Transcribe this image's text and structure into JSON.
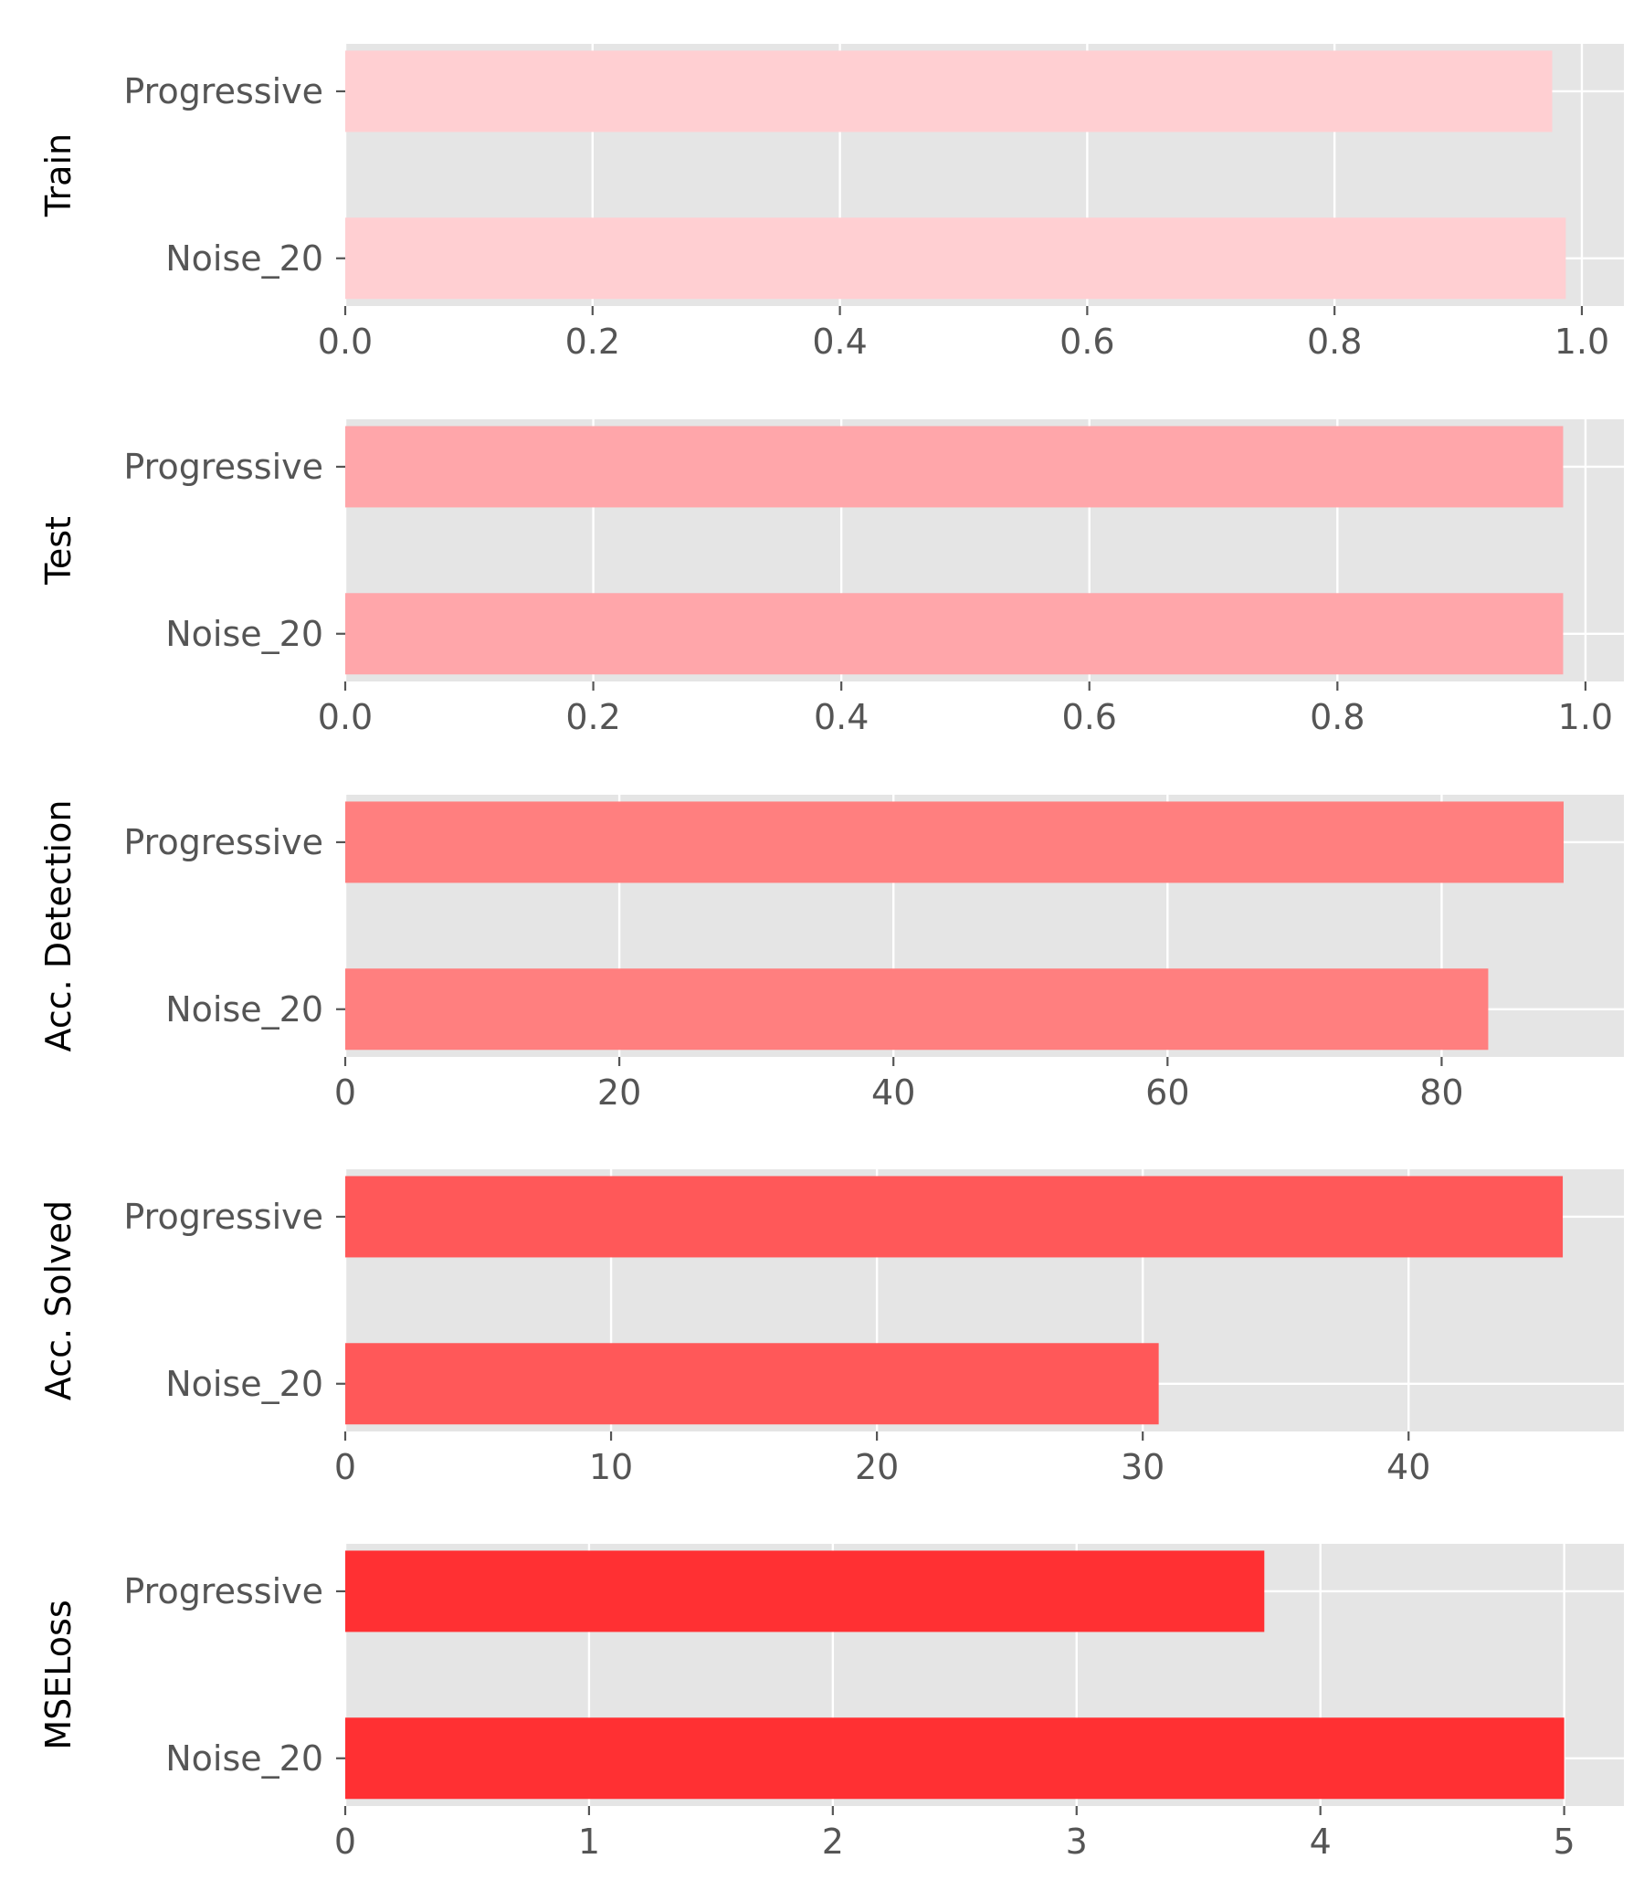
{
  "chart_data": [
    {
      "type": "bar",
      "orientation": "horizontal",
      "ylabel": "Train",
      "categories": [
        "Progressive",
        "Noise_20"
      ],
      "values": [
        0.976,
        0.987
      ],
      "xlim": [
        0,
        1.034
      ],
      "xticks": [
        0.0,
        0.2,
        0.4,
        0.6,
        0.8,
        1.0
      ],
      "xtick_labels": [
        "0.0",
        "0.2",
        "0.4",
        "0.6",
        "0.8",
        "1.0"
      ],
      "color": "#ffcfd2",
      "grid": true
    },
    {
      "type": "bar",
      "orientation": "horizontal",
      "ylabel": "Test",
      "categories": [
        "Progressive",
        "Noise_20"
      ],
      "values": [
        0.982,
        0.982
      ],
      "xlim": [
        0,
        1.031
      ],
      "xticks": [
        0.0,
        0.2,
        0.4,
        0.6,
        0.8,
        1.0
      ],
      "xtick_labels": [
        "0.0",
        "0.2",
        "0.4",
        "0.6",
        "0.8",
        "1.0"
      ],
      "color": "#ffa6aa",
      "grid": true
    },
    {
      "type": "bar",
      "orientation": "horizontal",
      "ylabel": "Acc. Detection",
      "categories": [
        "Progressive",
        "Noise_20"
      ],
      "values": [
        88.9,
        83.4
      ],
      "xlim": [
        0,
        93.3
      ],
      "xticks": [
        0,
        20,
        40,
        60,
        80
      ],
      "xtick_labels": [
        "0",
        "20",
        "40",
        "60",
        "80"
      ],
      "color": "#ff7f7f",
      "grid": true
    },
    {
      "type": "bar",
      "orientation": "horizontal",
      "ylabel": "Acc. Solved",
      "categories": [
        "Progressive",
        "Noise_20"
      ],
      "values": [
        45.8,
        30.6
      ],
      "xlim": [
        0,
        48.1
      ],
      "xticks": [
        0,
        10,
        20,
        30,
        40
      ],
      "xtick_labels": [
        "0",
        "10",
        "20",
        "30",
        "40"
      ],
      "color": "#ff5859",
      "grid": true
    },
    {
      "type": "bar",
      "orientation": "horizontal",
      "ylabel": "MSELoss",
      "categories": [
        "Progressive",
        "Noise_20"
      ],
      "values": [
        3.77,
        5.0
      ],
      "xlim": [
        0,
        5.245
      ],
      "xticks": [
        0,
        1,
        2,
        3,
        4,
        5
      ],
      "xtick_labels": [
        "0",
        "1",
        "2",
        "3",
        "4",
        "5"
      ],
      "color": "#ff3033",
      "grid": true
    }
  ]
}
